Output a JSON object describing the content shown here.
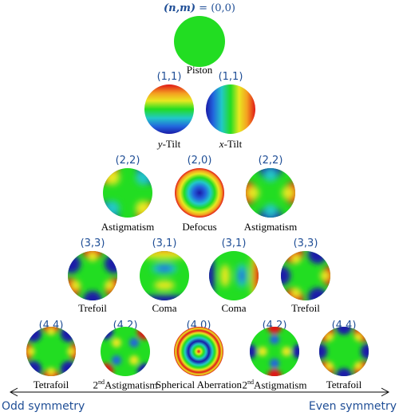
{
  "header": {
    "index_label": "(n,m)",
    "index_equals": " = (0,0)"
  },
  "terms": [
    {
      "index": "(0,0)",
      "label": "Piston",
      "type": "piston"
    },
    {
      "index": "(1,1)",
      "label_prefix": "y",
      "label": "-Tilt",
      "type": "ytilt"
    },
    {
      "index": "(1,1)",
      "label_prefix": "x",
      "label": "-Tilt",
      "type": "xtilt"
    },
    {
      "index": "(2,2)",
      "label": "Astigmatism",
      "type": "astig"
    },
    {
      "index": "(2,0)",
      "label": "Defocus",
      "type": "defocus"
    },
    {
      "index": "(2,2)",
      "label": "Astigmatism",
      "type": "astig"
    },
    {
      "index": "(3,3)",
      "label": "Trefoil",
      "type": "trefoil"
    },
    {
      "index": "(3,1)",
      "label": "Coma",
      "type": "comay"
    },
    {
      "index": "(3,1)",
      "label": "Coma",
      "type": "comax"
    },
    {
      "index": "(3,3)",
      "label": "Trefoil",
      "type": "trefoil"
    },
    {
      "index": "(4,4)",
      "label": "Tetrafoil",
      "type": "tetrafoil"
    },
    {
      "index": "(4,2)",
      "label_sup": "nd",
      "label_pre": "2",
      "label": "Astigmatism",
      "type": "astig2"
    },
    {
      "index": "(4,0)",
      "label": "Spherical Aberration",
      "type": "spherical"
    },
    {
      "index": "(4,2)",
      "label_sup": "nd",
      "label_pre": "2",
      "label": "Astigmatism",
      "type": "astig2b"
    },
    {
      "index": "(4,4)",
      "label": "Tetrafoil",
      "type": "tetrafoil"
    }
  ],
  "symmetry": {
    "left": "Odd symmetry",
    "right": "Even symmetry"
  },
  "colors": {
    "green": "#22dd22",
    "blue": "#1a1aa8",
    "red": "#e01818",
    "yellow": "#e8e820",
    "cyan": "#22c8c8",
    "index_text": "#1f4e96"
  }
}
